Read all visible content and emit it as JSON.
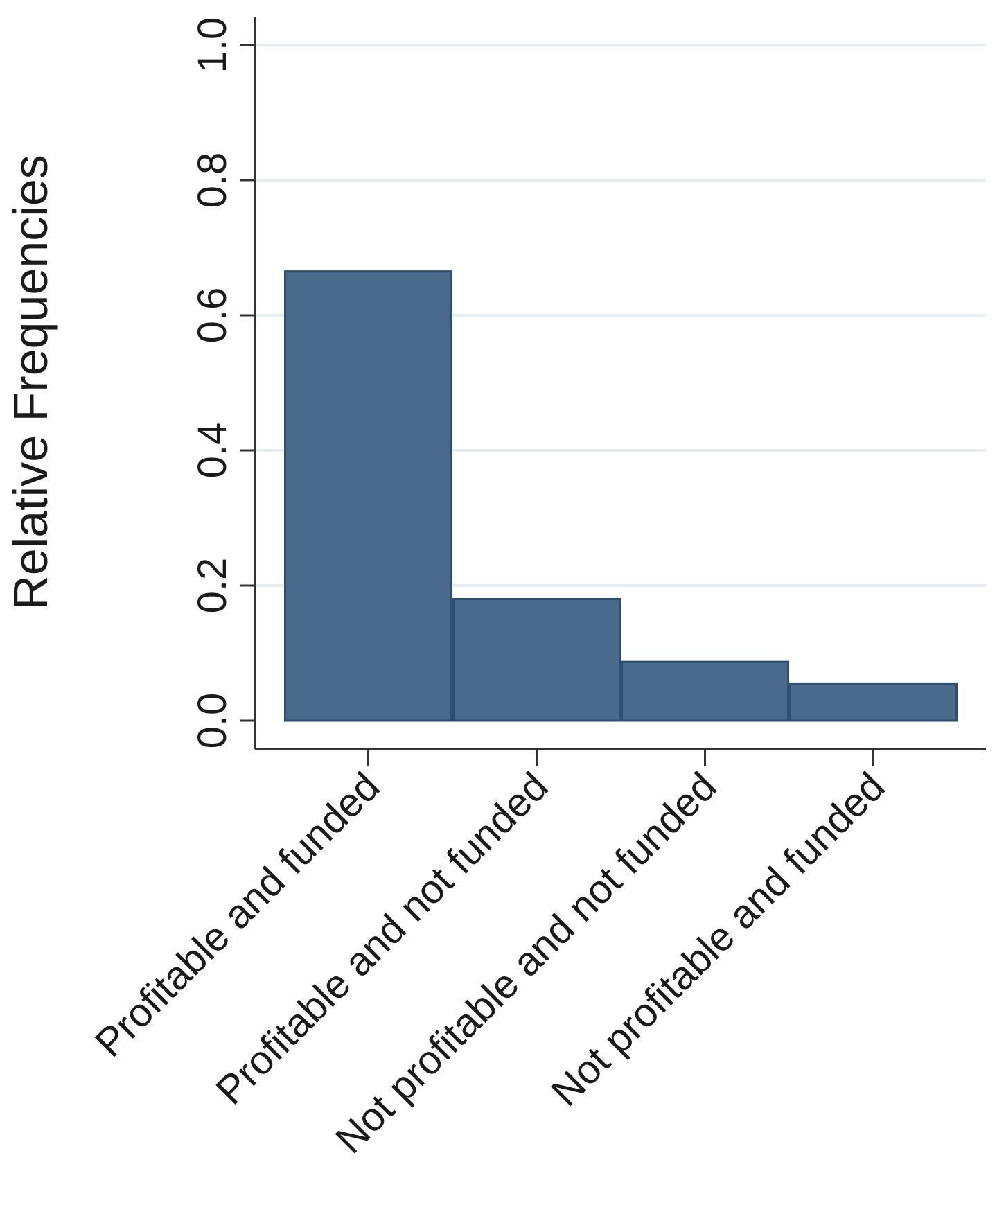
{
  "chart_data": {
    "type": "bar",
    "categories": [
      "Profitable and funded",
      "Profitable and not funded",
      "Not profitable and not funded",
      "Not profitable and funded"
    ],
    "values": [
      0.665,
      0.18,
      0.087,
      0.055
    ],
    "ylabel": "Relative Frequencies",
    "xlabel": "",
    "title": "",
    "ylim": [
      0,
      1.0
    ],
    "yticks": [
      "0.0",
      "0.2",
      "0.4",
      "0.6",
      "0.8",
      "1.0"
    ],
    "ytick_values": [
      0,
      0.2,
      0.4,
      0.6,
      0.8,
      1.0
    ],
    "grid": "horizontal",
    "colors": {
      "bar_fill": "#4a6a8b",
      "bar_edge": "#2f4f6f",
      "grid": "#e6eef2",
      "axis": "#333333"
    }
  }
}
